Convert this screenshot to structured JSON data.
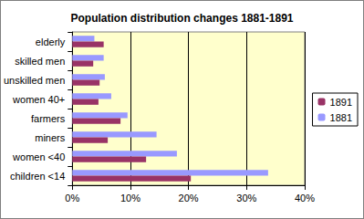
{
  "chart_data": {
    "type": "bar",
    "title": "Population distribution changes 1881-1891",
    "orientation": "horizontal",
    "categories": [
      "children <14",
      "women <40",
      "miners",
      "farmers",
      "women 40+",
      "unskilled men",
      "skilled men",
      "elderly"
    ],
    "series": [
      {
        "name": "1891",
        "color": "#993366",
        "values": [
          20.4,
          12.7,
          6.1,
          8.3,
          4.5,
          4.7,
          3.6,
          5.4
        ]
      },
      {
        "name": "1881",
        "color": "#9999FF",
        "values": [
          33.7,
          18.0,
          14.5,
          9.5,
          6.7,
          5.6,
          5.4,
          3.8
        ]
      }
    ],
    "xlim": [
      0,
      40
    ],
    "xticks": [
      {
        "value": 0,
        "label": "0%"
      },
      {
        "value": 10,
        "label": "10%"
      },
      {
        "value": 20,
        "label": "20%"
      },
      {
        "value": 30,
        "label": "30%"
      },
      {
        "value": 40,
        "label": "40%"
      }
    ],
    "grid": true,
    "legend": "right"
  }
}
